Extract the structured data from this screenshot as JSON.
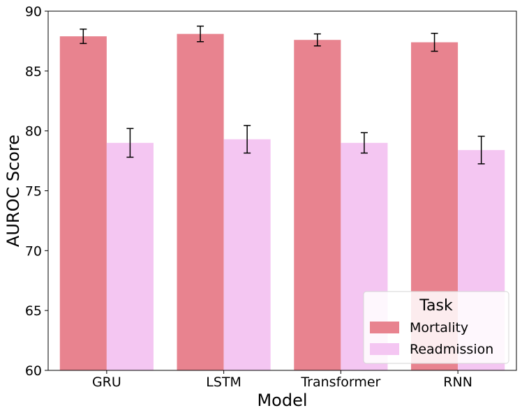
{
  "chart_data": {
    "type": "bar",
    "xlabel": "Model",
    "ylabel": "AUROC Score",
    "ylim": [
      60,
      90
    ],
    "yticks": [
      60,
      65,
      70,
      75,
      80,
      85,
      90
    ],
    "categories": [
      "GRU",
      "LSTM",
      "Transformer",
      "RNN"
    ],
    "series": [
      {
        "name": "Mortality",
        "color": "#e8838f",
        "values": [
          87.9,
          88.1,
          87.6,
          87.4
        ],
        "errors": [
          0.6,
          0.65,
          0.5,
          0.75
        ]
      },
      {
        "name": "Readmission",
        "color": "#f4c6f2",
        "values": [
          79.0,
          79.3,
          79.0,
          78.4
        ],
        "errors": [
          1.2,
          1.15,
          0.85,
          1.15
        ]
      }
    ],
    "legend": {
      "title": "Task",
      "position": "lower-right"
    },
    "grid": false
  }
}
